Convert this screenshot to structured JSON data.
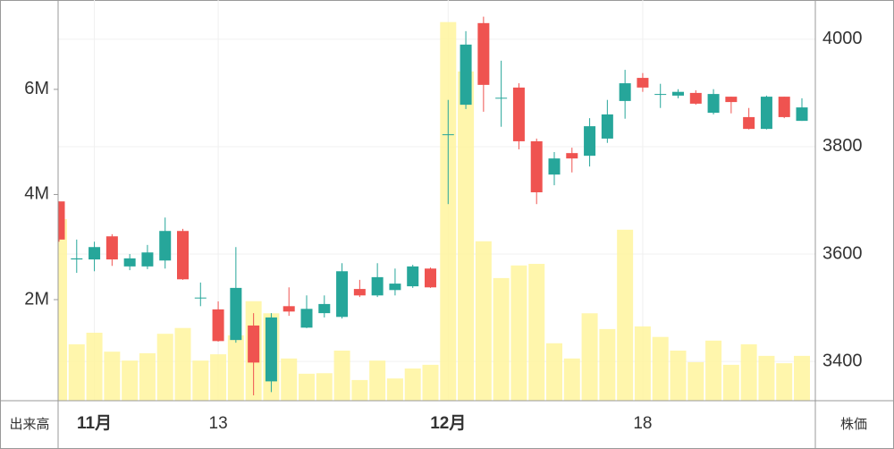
{
  "chart_data": {
    "type": "candlestick",
    "categories": [
      null,
      null,
      "11月",
      null,
      null,
      null,
      null,
      null,
      null,
      "13",
      null,
      null,
      null,
      null,
      null,
      null,
      null,
      null,
      null,
      null,
      null,
      null,
      "12月",
      null,
      null,
      null,
      null,
      null,
      null,
      null,
      null,
      null,
      null,
      "18",
      null,
      null,
      null,
      null,
      null,
      null,
      null,
      null,
      null
    ],
    "open": [
      3698,
      3590,
      3590,
      3633,
      3577,
      3577,
      3588,
      3643,
      3518,
      3497,
      3440,
      3467,
      3363,
      3503,
      3463,
      3490,
      3483,
      3535,
      3523,
      3533,
      3540,
      3573,
      3822,
      3878,
      4030,
      3890,
      3910,
      3810,
      3748,
      3788,
      3783,
      3815,
      3885,
      3928,
      3897,
      3895,
      3900,
      3863,
      3893,
      3855,
      3833,
      3893,
      3848
    ],
    "high": [
      3698,
      3627,
      3623,
      3637,
      3600,
      3617,
      3668,
      3647,
      3547,
      3512,
      3613,
      3490,
      3490,
      3538,
      3523,
      3523,
      3583,
      3552,
      3583,
      3573,
      3580,
      3575,
      3887,
      4015,
      4042,
      3960,
      3918,
      3815,
      3790,
      3798,
      3853,
      3887,
      3943,
      3937,
      3917,
      3907,
      3905,
      3907,
      3893,
      3872,
      3895,
      3893,
      3890
    ],
    "low": [
      3623,
      3565,
      3568,
      3578,
      3570,
      3572,
      3573,
      3552,
      3503,
      3437,
      3435,
      3337,
      3343,
      3485,
      3462,
      3482,
      3480,
      3520,
      3520,
      3523,
      3537,
      3537,
      3693,
      3870,
      3865,
      3837,
      3795,
      3693,
      3728,
      3752,
      3763,
      3807,
      3852,
      3902,
      3872,
      3890,
      3878,
      3860,
      3862,
      3832,
      3832,
      3853,
      3848
    ],
    "close": [
      3627,
      3592,
      3613,
      3590,
      3592,
      3603,
      3643,
      3553,
      3519,
      3438,
      3537,
      3398,
      3482,
      3493,
      3498,
      3507,
      3568,
      3523,
      3557,
      3545,
      3577,
      3538,
      3823,
      3990,
      3915,
      3891,
      3810,
      3715,
      3778,
      3778,
      3838,
      3860,
      3918,
      3910,
      3898,
      3902,
      3880,
      3898,
      3883,
      3833,
      3893,
      3855,
      3873
    ],
    "volume": [
      3530000,
      1150000,
      1370000,
      1010000,
      840000,
      980000,
      1350000,
      1460000,
      840000,
      960000,
      1320000,
      1970000,
      1740000,
      880000,
      590000,
      600000,
      1030000,
      470000,
      840000,
      500000,
      690000,
      760000,
      7280000,
      6340000,
      3110000,
      2410000,
      2650000,
      2680000,
      1170000,
      880000,
      1740000,
      1440000,
      3330000,
      1490000,
      1290000,
      1030000,
      810000,
      1220000,
      760000,
      1150000,
      930000,
      790000,
      930000
    ],
    "up_color": "#26a69a",
    "down_color": "#ef5350",
    "volume_color": "#fff59d",
    "ylim": [
      77000,
      7700000
    ],
    "yticks": [
      {
        "value": 2000000,
        "label": "2M"
      },
      {
        "value": 4000000,
        "label": "4M"
      },
      {
        "value": 6000000,
        "label": "6M"
      }
    ],
    "y2lim": [
      3327,
      4073
    ],
    "y2ticks": [
      3400,
      3600,
      3800,
      4000
    ],
    "y_label": "出来高",
    "y2_label": "株価",
    "grid": true
  }
}
